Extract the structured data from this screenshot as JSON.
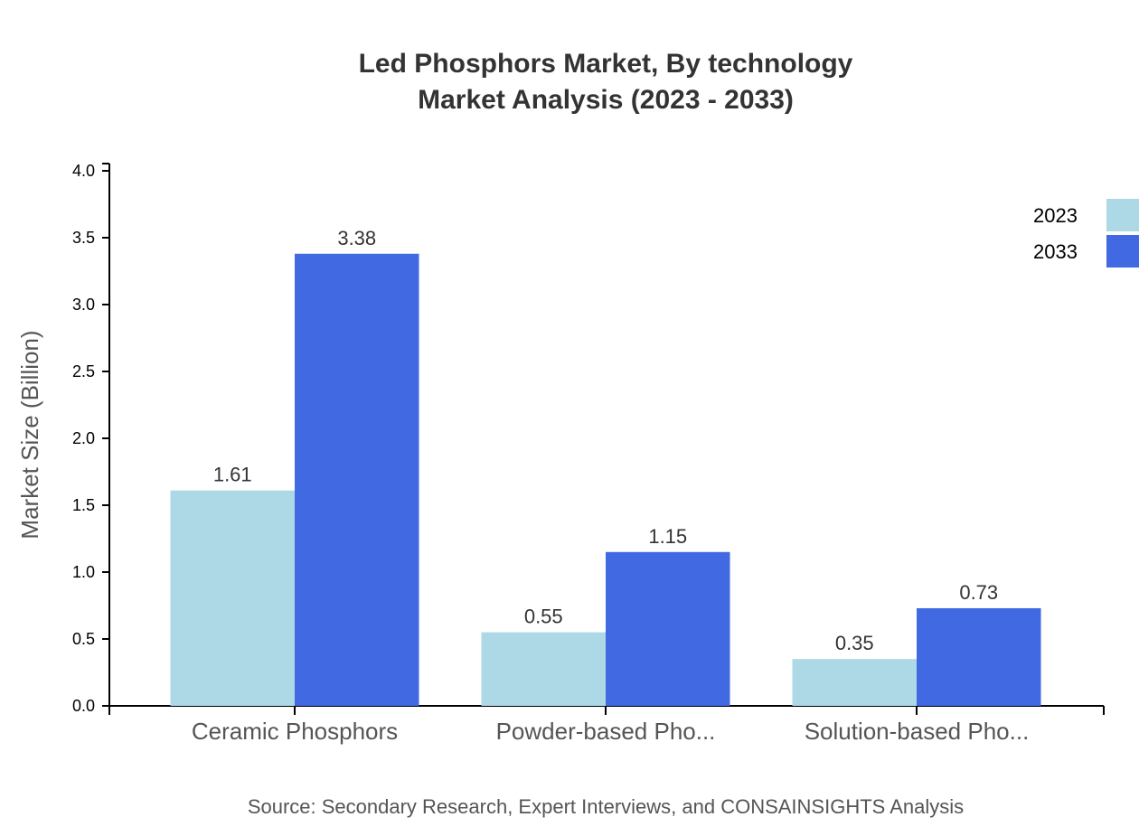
{
  "chart_data": {
    "type": "bar",
    "title": "Led Phosphors Market, By technology",
    "subtitle": "Market Analysis (2023 - 2033)",
    "xlabel": "",
    "ylabel": "Market Size (Billion)",
    "ylim": [
      0,
      4.0
    ],
    "yticks": [
      "0.0",
      "0.5",
      "1.0",
      "1.5",
      "2.0",
      "2.5",
      "3.0",
      "3.5",
      "4.0"
    ],
    "categories": [
      "Ceramic Phosphors",
      "Powder-based Pho...",
      "Solution-based Pho..."
    ],
    "series": [
      {
        "name": "2023",
        "color": "#add8e6",
        "values": [
          1.61,
          0.55,
          0.35
        ]
      },
      {
        "name": "2033",
        "color": "#4169e1",
        "values": [
          3.38,
          1.15,
          0.73
        ]
      }
    ],
    "legend_position": "top-right",
    "grid": false,
    "source": "Source: Secondary Research, Expert Interviews, and CONSAINSIGHTS Analysis"
  }
}
